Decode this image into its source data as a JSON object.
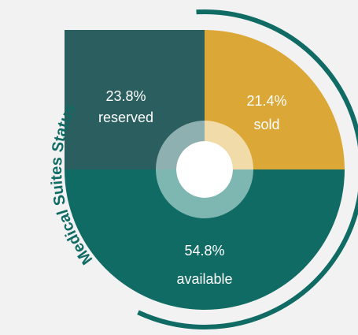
{
  "chart_data": {
    "type": "pie",
    "title": "Medical Suites Status",
    "slices": [
      {
        "name": "sold",
        "percent_label": "21.4%",
        "value": 21.4,
        "color": "#dba737"
      },
      {
        "name": "available",
        "percent_label": "54.8%",
        "value": 54.8,
        "color": "#0f6b63"
      },
      {
        "name": "reserved",
        "percent_label": "23.8%",
        "value": 23.8,
        "color": "#2b5e5e"
      }
    ]
  },
  "colors": {
    "background": "#f2f2f2",
    "outer_ring": "#0f6b63",
    "inner_ring_sold": "#f1dba8",
    "inner_ring_available": "#7eb6b1",
    "inner_ring_reserved": "#8fb0b0",
    "hole": "#ffffff",
    "title": "#0f6b63"
  }
}
